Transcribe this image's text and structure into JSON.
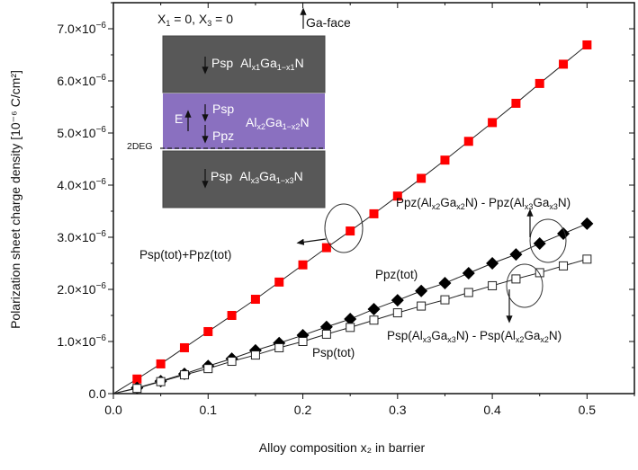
{
  "chart_data": {
    "type": "line",
    "title": "",
    "xlabel": "Alloy composition x₂ in barrier",
    "ylabel": "Polarization sheet charge density [10⁻⁶ C/cm²]",
    "xlim": [
      0,
      0.55
    ],
    "ylim": [
      0,
      7.5
    ],
    "y_unit_multiplier": "1e-6",
    "x_ticks": [
      "0.0",
      "0.1",
      "0.2",
      "0.3",
      "0.4",
      "0.5"
    ],
    "y_ticks": [
      "0.0",
      "1.0×10⁻⁶",
      "2.0×10⁻⁶",
      "3.0×10⁻⁶",
      "4.0×10⁻⁶",
      "5.0×10⁻⁶",
      "6.0×10⁻⁶",
      "7.0×10⁻⁶"
    ],
    "x": [
      0.025,
      0.05,
      0.075,
      0.1,
      0.125,
      0.15,
      0.175,
      0.2,
      0.225,
      0.25,
      0.275,
      0.3,
      0.325,
      0.35,
      0.375,
      0.4,
      0.425,
      0.45,
      0.475,
      0.5
    ],
    "series": [
      {
        "name": "Psp(tot)+Ppz(tot)",
        "marker": "filled-square",
        "color": "#ff0000",
        "values": [
          0.28,
          0.57,
          0.88,
          1.19,
          1.5,
          1.81,
          2.14,
          2.47,
          2.8,
          3.12,
          3.45,
          3.79,
          4.13,
          4.48,
          4.84,
          5.2,
          5.57,
          5.95,
          6.32,
          6.69
        ]
      },
      {
        "name": "Ppz(tot)",
        "marker": "filled-diamond",
        "color": "#000000",
        "values": [
          0.11,
          0.24,
          0.38,
          0.53,
          0.67,
          0.83,
          0.97,
          1.12,
          1.28,
          1.43,
          1.62,
          1.79,
          1.97,
          2.12,
          2.31,
          2.5,
          2.67,
          2.88,
          3.07,
          3.26
        ]
      },
      {
        "name": "Psp(tot)",
        "marker": "open-square",
        "color": "#000000",
        "values": [
          0.1,
          0.23,
          0.36,
          0.48,
          0.62,
          0.74,
          0.88,
          1.0,
          1.14,
          1.27,
          1.41,
          1.55,
          1.68,
          1.8,
          1.94,
          2.07,
          2.2,
          2.32,
          2.45,
          2.58
        ]
      }
    ],
    "annotations": {
      "total": "Psp(tot)+Ppz(tot)",
      "ppz_tot": "Ppz(tot)",
      "psp_tot": "Psp(tot)",
      "ppz_diff": {
        "a": "Ppz(Al",
        "b": "x2",
        "c": "Ga",
        "d": "x2",
        "e": "N) - Ppz(Al",
        "f": "x3",
        "g": "Ga",
        "h": "x3",
        "i": "N)"
      },
      "psp_diff": {
        "a": "Psp(Al",
        "b": "x3",
        "c": "Ga",
        "d": "x3",
        "e": "N) - Psp(Al",
        "f": "x2",
        "g": "Ga",
        "h": "x2",
        "i": "N)"
      }
    },
    "grid": false,
    "legend": "none"
  },
  "inset": {
    "condition": {
      "x1": "X",
      "s1": "1",
      "mid": " = 0, X",
      "s3": "3",
      "end": " = 0"
    },
    "ga_face": "Ga-face",
    "layer_top": {
      "psp": "Psp",
      "al": "Al",
      "s1": "x1",
      "ga": "Ga",
      "s2": "1−x1",
      "n": "N"
    },
    "layer_mid": {
      "e": "E",
      "psp": "Psp",
      "ppz": "Ppz",
      "al": "Al",
      "s1": "x2",
      "ga": "Ga",
      "s2": "1−x2",
      "n": "N"
    },
    "layer_bot": {
      "psp": "Psp",
      "al": "Al",
      "s1": "x3",
      "ga": "Ga",
      "s2": "1−x3",
      "n": "N"
    },
    "twodeg": "2DEG",
    "colors": {
      "gray": "#585858",
      "purple": "#8a70c0"
    }
  }
}
